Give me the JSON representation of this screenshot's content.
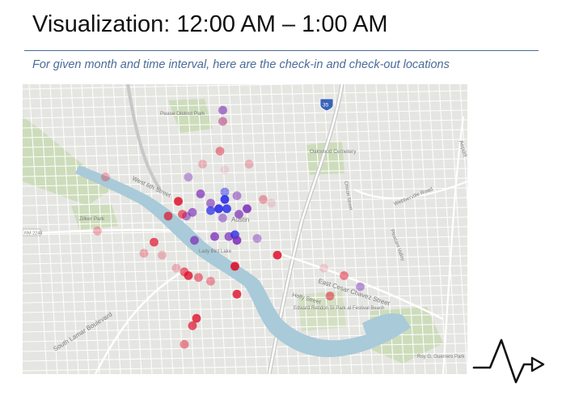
{
  "slide": {
    "title": "Visualization: 12:00 AM – 1:00 AM",
    "subtitle": "For given month and time interval, here are the check-in and check-out locations"
  },
  "map": {
    "labels": {
      "pease_park": "Pease District Park",
      "oakwood": "Oakwood Cemetery",
      "austin": "Austin",
      "zilker": "Zilker Park",
      "lady_bird": "Lady Bird Lake",
      "west_6th": "West 6th Street",
      "east_cesar": "East Cesar Chavez Street",
      "holly": "Holly Street",
      "s_lamar": "South Lamar Boulevard",
      "edward_rendon": "Edward Rendon Sr Park at Festival Beach",
      "roy_guerrero": "Roy G. Guerrero Park",
      "airport": "Airport",
      "webberville": "Webberville Road",
      "rm2244": "RM 2244",
      "i35": "35",
      "chicon": "Chicon Street",
      "pleasant_valley": "Pleasant Valley"
    },
    "colors": {
      "check_in_high": "#2626e0",
      "check_out_high": "#e0102a",
      "water": "#a9cad8",
      "park": "#c9d9b5",
      "road": "#ffffff",
      "land": "#e5e5e2"
    },
    "points": [
      {
        "name": "pt-1",
        "lng": -97.7505,
        "lat": 30.283,
        "kind": "purple",
        "strength": 0.6
      },
      {
        "name": "pt-2",
        "lng": -97.7505,
        "lat": 30.28,
        "kind": "magenta",
        "strength": 0.5
      },
      {
        "name": "pt-3",
        "lng": -97.7512,
        "lat": 30.272,
        "kind": "red",
        "strength": 0.45
      },
      {
        "name": "pt-4",
        "lng": -97.7555,
        "lat": 30.2685,
        "kind": "red",
        "strength": 0.25
      },
      {
        "name": "pt-5",
        "lng": -97.744,
        "lat": 30.2685,
        "kind": "red",
        "strength": 0.25
      },
      {
        "name": "pt-6",
        "lng": -97.75,
        "lat": 30.267,
        "kind": "pink",
        "strength": 0.2
      },
      {
        "name": "pt-7",
        "lng": -97.7795,
        "lat": 30.265,
        "kind": "red",
        "strength": 0.3
      },
      {
        "name": "pt-8",
        "lng": -97.759,
        "lat": 30.265,
        "kind": "purple",
        "strength": 0.4
      },
      {
        "name": "pt-9",
        "lng": -97.75,
        "lat": 30.261,
        "kind": "blue",
        "strength": 0.5
      },
      {
        "name": "pt-10",
        "lng": -97.756,
        "lat": 30.2605,
        "kind": "purple",
        "strength": 0.7
      },
      {
        "name": "pt-11",
        "lng": -97.747,
        "lat": 30.26,
        "kind": "purple",
        "strength": 0.5
      },
      {
        "name": "pt-12",
        "lng": -97.75,
        "lat": 30.259,
        "kind": "blue",
        "strength": 0.9
      },
      {
        "name": "pt-13",
        "lng": -97.7615,
        "lat": 30.2585,
        "kind": "red",
        "strength": 0.85
      },
      {
        "name": "pt-14",
        "lng": -97.7535,
        "lat": 30.258,
        "kind": "purple",
        "strength": 0.6
      },
      {
        "name": "pt-15",
        "lng": -97.7405,
        "lat": 30.259,
        "kind": "red",
        "strength": 0.35
      },
      {
        "name": "pt-16",
        "lng": -97.7385,
        "lat": 30.258,
        "kind": "pink",
        "strength": 0.25
      },
      {
        "name": "pt-17",
        "lng": -97.7445,
        "lat": 30.2565,
        "kind": "purple",
        "strength": 0.85
      },
      {
        "name": "pt-18",
        "lng": -97.7515,
        "lat": 30.2565,
        "kind": "blue",
        "strength": 0.9
      },
      {
        "name": "pt-19",
        "lng": -97.7495,
        "lat": 30.2565,
        "kind": "blue",
        "strength": 0.85
      },
      {
        "name": "pt-20",
        "lng": -97.7535,
        "lat": 30.256,
        "kind": "blue",
        "strength": 0.75
      },
      {
        "name": "pt-21",
        "lng": -97.758,
        "lat": 30.2555,
        "kind": "purple",
        "strength": 0.65
      },
      {
        "name": "pt-22",
        "lng": -97.7595,
        "lat": 30.2545,
        "kind": "purple",
        "strength": 0.55
      },
      {
        "name": "pt-23",
        "lng": -97.7605,
        "lat": 30.255,
        "kind": "red",
        "strength": 0.6
      },
      {
        "name": "pt-24",
        "lng": -97.764,
        "lat": 30.2545,
        "kind": "red",
        "strength": 0.7
      },
      {
        "name": "pt-25",
        "lng": -97.7465,
        "lat": 30.255,
        "kind": "purple",
        "strength": 0.7
      },
      {
        "name": "pt-26",
        "lng": -97.7505,
        "lat": 30.254,
        "kind": "purple",
        "strength": 0.5
      },
      {
        "name": "pt-27",
        "lng": -97.7815,
        "lat": 30.2505,
        "kind": "red",
        "strength": 0.3
      },
      {
        "name": "pt-28",
        "lng": -97.7525,
        "lat": 30.249,
        "kind": "purple",
        "strength": 0.75
      },
      {
        "name": "pt-29",
        "lng": -97.749,
        "lat": 30.249,
        "kind": "purple",
        "strength": 0.7
      },
      {
        "name": "pt-30",
        "lng": -97.7475,
        "lat": 30.2495,
        "kind": "blue",
        "strength": 0.8
      },
      {
        "name": "pt-31",
        "lng": -97.747,
        "lat": 30.248,
        "kind": "purple",
        "strength": 0.85
      },
      {
        "name": "pt-32",
        "lng": -97.742,
        "lat": 30.2485,
        "kind": "purple",
        "strength": 0.45
      },
      {
        "name": "pt-33",
        "lng": -97.7575,
        "lat": 30.248,
        "kind": "purple",
        "strength": 0.7
      },
      {
        "name": "pt-34",
        "lng": -97.7675,
        "lat": 30.2475,
        "kind": "red",
        "strength": 0.7
      },
      {
        "name": "pt-35",
        "lng": -97.77,
        "lat": 30.2445,
        "kind": "red",
        "strength": 0.3
      },
      {
        "name": "pt-36",
        "lng": -97.7655,
        "lat": 30.244,
        "kind": "red",
        "strength": 0.25
      },
      {
        "name": "pt-37",
        "lng": -97.737,
        "lat": 30.244,
        "kind": "red",
        "strength": 0.85
      },
      {
        "name": "pt-38",
        "lng": -97.7475,
        "lat": 30.241,
        "kind": "red",
        "strength": 0.9
      },
      {
        "name": "pt-39",
        "lng": -97.762,
        "lat": 30.2405,
        "kind": "red",
        "strength": 0.25
      },
      {
        "name": "pt-40",
        "lng": -97.7255,
        "lat": 30.2405,
        "kind": "pink",
        "strength": 0.3
      },
      {
        "name": "pt-41",
        "lng": -97.76,
        "lat": 30.2395,
        "kind": "red",
        "strength": 0.6
      },
      {
        "name": "pt-42",
        "lng": -97.7205,
        "lat": 30.2385,
        "kind": "red",
        "strength": 0.5
      },
      {
        "name": "pt-43",
        "lng": -97.759,
        "lat": 30.2385,
        "kind": "red",
        "strength": 0.8
      },
      {
        "name": "pt-44",
        "lng": -97.7565,
        "lat": 30.238,
        "kind": "red",
        "strength": 0.5
      },
      {
        "name": "pt-45",
        "lng": -97.7535,
        "lat": 30.237,
        "kind": "red",
        "strength": 0.4
      },
      {
        "name": "pt-46",
        "lng": -97.7165,
        "lat": 30.2355,
        "kind": "purple",
        "strength": 0.45
      },
      {
        "name": "pt-47",
        "lng": -97.747,
        "lat": 30.2335,
        "kind": "red",
        "strength": 0.8
      },
      {
        "name": "pt-48",
        "lng": -97.724,
        "lat": 30.233,
        "kind": "red",
        "strength": 0.5
      },
      {
        "name": "pt-49",
        "lng": -97.757,
        "lat": 30.227,
        "kind": "red",
        "strength": 0.8
      },
      {
        "name": "pt-50",
        "lng": -97.758,
        "lat": 30.225,
        "kind": "red",
        "strength": 0.7
      },
      {
        "name": "pt-51",
        "lng": -97.76,
        "lat": 30.22,
        "kind": "red",
        "strength": 0.45
      }
    ]
  }
}
